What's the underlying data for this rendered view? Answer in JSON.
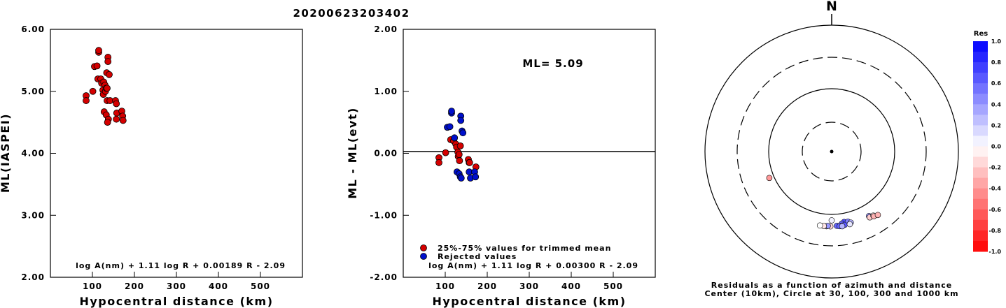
{
  "title": "20200623203402",
  "chart_data": [
    {
      "type": "scatter",
      "ylabel": "ML(IASPEI)",
      "xlabel": "Hypocentral distance (km)",
      "xlim": [
        0,
        600
      ],
      "ylim": [
        2,
        6
      ],
      "x_ticks": [
        "100",
        "200",
        "300",
        "400",
        "500"
      ],
      "y_ticks": [
        "2.00",
        "3.00",
        "4.00",
        "5.00",
        "6.00"
      ],
      "formula": "log A(nm) + 1.11 log R + 0.00189 R - 2.09",
      "color": "#d40000",
      "points": [
        [
          85,
          4.93
        ],
        [
          85,
          4.85
        ],
        [
          101,
          5.0
        ],
        [
          105,
          5.4
        ],
        [
          111,
          5.41
        ],
        [
          115,
          5.63
        ],
        [
          115,
          5.66
        ],
        [
          113,
          5.2
        ],
        [
          120,
          5.2
        ],
        [
          122,
          5.13
        ],
        [
          125,
          5.02
        ],
        [
          127,
          5.15
        ],
        [
          130,
          5.1
        ],
        [
          126,
          4.95
        ],
        [
          131,
          5.0
        ],
        [
          133,
          5.05
        ],
        [
          135,
          5.05
        ],
        [
          128,
          4.67
        ],
        [
          135,
          4.85
        ],
        [
          133,
          4.62
        ],
        [
          138,
          4.55
        ],
        [
          136,
          4.5
        ],
        [
          137,
          5.55
        ],
        [
          137,
          5.48
        ],
        [
          134,
          5.3
        ],
        [
          140,
          5.27
        ],
        [
          142,
          4.85
        ],
        [
          155,
          4.85
        ],
        [
          157,
          4.8
        ],
        [
          158,
          4.65
        ],
        [
          157,
          4.55
        ],
        [
          170,
          4.68
        ],
        [
          172,
          4.6
        ],
        [
          173,
          4.53
        ]
      ]
    },
    {
      "type": "scatter",
      "ylabel": "ML - ML(evt)",
      "xlabel": "Hypocentral distance (km)",
      "xlim": [
        0,
        600
      ],
      "ylim": [
        -2,
        2
      ],
      "x_ticks": [
        "100",
        "200",
        "300",
        "400",
        "500"
      ],
      "y_ticks": [
        "-2.00",
        "-1.00",
        "0.00",
        "1.00",
        "2.00"
      ],
      "annotation": "ML= 5.09",
      "formula": "log A(nm) + 1.11 log R + 0.00300 R - 2.09",
      "legend": [
        {
          "label": "25%-75% values for trimmed mean",
          "color": "#d40000"
        },
        {
          "label": "Rejected values",
          "color": "#0010cc"
        }
      ],
      "series": [
        {
          "name": "25%-75% values for trimmed mean",
          "color": "#d40000",
          "points": [
            [
              85,
              -0.07
            ],
            [
              85,
              -0.15
            ],
            [
              101,
              0.01
            ],
            [
              113,
              0.22
            ],
            [
              120,
              0.2
            ],
            [
              125,
              0.15
            ],
            [
              127,
              0.1
            ],
            [
              130,
              0.02
            ],
            [
              131,
              -0.05
            ],
            [
              133,
              -0.02
            ],
            [
              134,
              -0.12
            ],
            [
              136,
              0.12
            ],
            [
              155,
              -0.1
            ],
            [
              157,
              -0.15
            ],
            [
              158,
              -0.15
            ],
            [
              173,
              -0.22
            ]
          ]
        },
        {
          "name": "Rejected values",
          "color": "#0010cc",
          "points": [
            [
              105,
              0.42
            ],
            [
              111,
              0.43
            ],
            [
              115,
              0.65
            ],
            [
              115,
              0.68
            ],
            [
              122,
              0.25
            ],
            [
              128,
              -0.3
            ],
            [
              133,
              -0.33
            ],
            [
              136,
              -0.38
            ],
            [
              137,
              0.6
            ],
            [
              137,
              0.53
            ],
            [
              138,
              -0.4
            ],
            [
              140,
              0.36
            ],
            [
              142,
              0.33
            ],
            [
              157,
              -0.3
            ],
            [
              160,
              -0.4
            ],
            [
              170,
              -0.3
            ],
            [
              172,
              -0.38
            ]
          ]
        }
      ]
    },
    {
      "type": "scatter",
      "subtype": "polar",
      "north_label": "N",
      "caption": [
        "Residuals as a function of azimuth and distance",
        "Center (10km), Circle at 30, 100, 300 and 1000 km"
      ],
      "colorbar_title": "Res",
      "colorbar_ticks": [
        "1.0",
        "0.8",
        "0.6",
        "0.4",
        "0.2",
        "0.0",
        "-0.2",
        "-0.4",
        "-0.6",
        "-0.8",
        "-1.0"
      ],
      "points": [
        {
          "azimuth": 247,
          "distance_km": 118,
          "res": -0.4
        },
        {
          "azimuth": 180,
          "distance_km": 123,
          "res": 0.05
        },
        {
          "azimuth": 170,
          "distance_km": 135,
          "res": 0.7
        },
        {
          "azimuth": 167,
          "distance_km": 137,
          "res": 0.5
        },
        {
          "azimuth": 172,
          "distance_km": 142,
          "res": 0.6
        },
        {
          "azimuth": 165,
          "distance_km": 145,
          "res": 0.3
        },
        {
          "azimuth": 176,
          "distance_km": 150,
          "res": 0.6
        },
        {
          "azimuth": 172,
          "distance_km": 152,
          "res": 0.45
        },
        {
          "azimuth": 170,
          "distance_km": 150,
          "res": 0.65
        },
        {
          "azimuth": 181,
          "distance_km": 152,
          "res": -0.15
        },
        {
          "azimuth": 184,
          "distance_km": 152,
          "res": 0.05
        },
        {
          "azimuth": 166,
          "distance_km": 152,
          "res": 0.1
        },
        {
          "azimuth": 183,
          "distance_km": 150,
          "res": 0.4
        },
        {
          "azimuth": 186,
          "distance_km": 152,
          "res": -0.1
        },
        {
          "azimuth": 174,
          "distance_km": 153,
          "res": 0.6
        },
        {
          "azimuth": 172,
          "distance_km": 155,
          "res": 0.3
        },
        {
          "azimuth": 150,
          "distance_km": 150,
          "res": 0.4
        },
        {
          "azimuth": 150,
          "distance_km": 158,
          "res": -0.2
        },
        {
          "azimuth": 147,
          "distance_km": 160,
          "res": -0.1
        },
        {
          "azimuth": 147,
          "distance_km": 165,
          "res": -0.3
        },
        {
          "azimuth": 144,
          "distance_km": 172,
          "res": -0.3
        },
        {
          "azimuth": 189,
          "distance_km": 152,
          "res": 0.0
        }
      ]
    }
  ]
}
